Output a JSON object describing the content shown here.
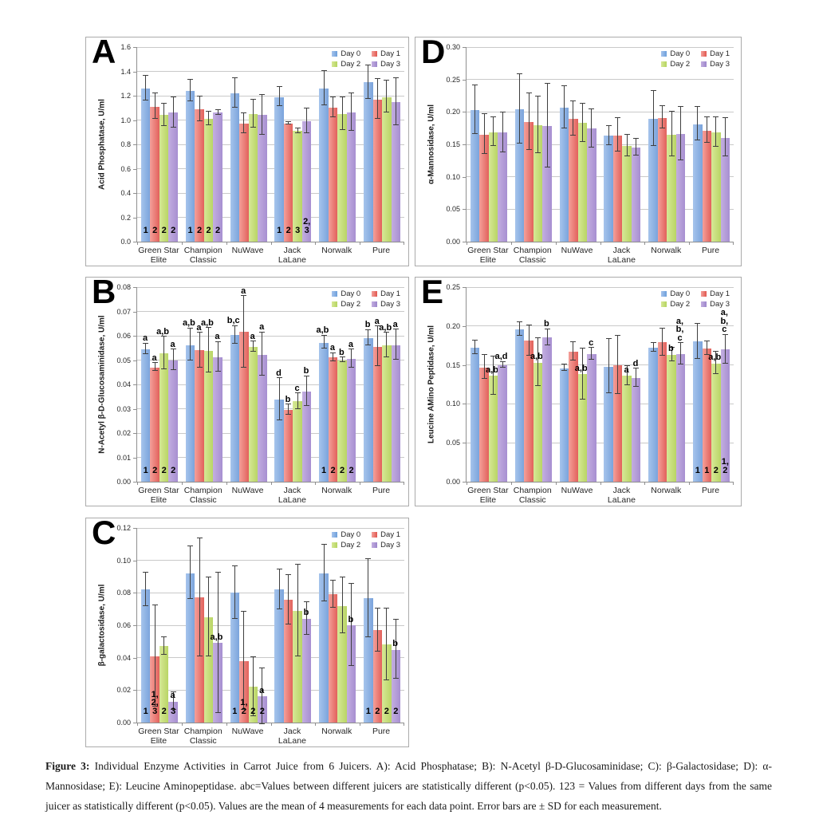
{
  "figure": {
    "caption_label": "Figure 3:",
    "caption_text": " Individual Enzyme Activities in Carrot Juice from 6 Juicers. A): Acid Phosphatase; B): N-Acetyl β-D-Glucosaminidase; C): β-Galactosidase; D): α-Mannosidase; E): Leucine Aminopeptidase. abc=Values between different juicers are statistically different (p<0.05). 123 = Values from different days from the same juicer as statistically different (p<0.05). Values are the mean of 4 measurements for each data point. Error bars are ± SD for each measurement."
  },
  "legend": {
    "labels": [
      "Day 0",
      "Day 1",
      "Day 2",
      "Day 3"
    ]
  },
  "colors": {
    "series_light": [
      "#a6c4ec",
      "#f4a09a",
      "#d6e896",
      "#c3aee0"
    ],
    "series_dark": [
      "#7ba4dc",
      "#e2615b",
      "#b9d565",
      "#a78fd1"
    ],
    "legend_swatch": [
      "#6d9fdb",
      "#e0574f",
      "#b5d45f",
      "#9c85cb"
    ],
    "gridline": "#c9c9c9",
    "axis": "#8f8f8f",
    "error_bar": "#3f3f3f"
  },
  "chart_data": [
    {
      "id": "A",
      "type": "bar",
      "ylabel": "Acid Phosphatase, U/ml",
      "ymax": 1.6,
      "ystep": 0.2,
      "decimals": 1,
      "categories": [
        "Green Star Elite",
        "Champion Classic",
        "NuWave",
        "Jack LaLane",
        "Norwalk",
        "Pure"
      ],
      "series": [
        {
          "name": "Day 0",
          "values": [
            1.26,
            1.24,
            1.22,
            1.19,
            1.26,
            1.31
          ],
          "errors": [
            0.1,
            0.085,
            0.115,
            0.075,
            0.14,
            0.135
          ]
        },
        {
          "name": "Day 1",
          "values": [
            1.11,
            1.09,
            0.97,
            0.97,
            1.1,
            1.17
          ],
          "errors": [
            0.1,
            0.1,
            0.08,
            0.005,
            0.08,
            0.16
          ]
        },
        {
          "name": "Day 2",
          "values": [
            1.04,
            1.01,
            1.05,
            0.91,
            1.05,
            1.19
          ],
          "errors": [
            0.09,
            0.05,
            0.11,
            0.015,
            0.13,
            0.13
          ]
        },
        {
          "name": "Day 3",
          "values": [
            1.06,
            1.06,
            1.04,
            0.99,
            1.06,
            1.15
          ],
          "errors": [
            0.12,
            0.015,
            0.16,
            0.1,
            0.15,
            0.19
          ]
        }
      ],
      "letters": null,
      "numbers": [
        [
          "1",
          "2",
          "2",
          "2"
        ],
        [
          "1",
          "2",
          "2",
          "2"
        ],
        null,
        [
          "1",
          "2",
          "3",
          "2,\n3"
        ],
        null,
        null
      ]
    },
    {
      "id": "B",
      "type": "bar",
      "ylabel": "N-Acetyl β-D-Glucosaminidase, U/ml",
      "ymax": 0.08,
      "ystep": 0.01,
      "decimals": 2,
      "categories": [
        "Green Star Elite",
        "Champion Classic",
        "NuWave",
        "Jack LaLane",
        "Norwalk",
        "Pure"
      ],
      "series": [
        {
          "name": "Day 0",
          "values": [
            0.0545,
            0.0562,
            0.0602,
            0.0337,
            0.0572,
            0.059
          ],
          "errors": [
            0.002,
            0.0065,
            0.0035,
            0.0085,
            0.0025,
            0.003
          ]
        },
        {
          "name": "Day 1",
          "values": [
            0.047,
            0.054,
            0.0615,
            0.0295,
            0.051,
            0.0555
          ],
          "errors": [
            0.0015,
            0.007,
            0.0145,
            0.002,
            0.0015,
            0.008
          ]
        },
        {
          "name": "Day 2",
          "values": [
            0.0528,
            0.0538,
            0.0553,
            0.033,
            0.05,
            0.056
          ],
          "errors": [
            0.0065,
            0.009,
            0.002,
            0.003,
            0.0008,
            0.005
          ]
        },
        {
          "name": "Day 3",
          "values": [
            0.05,
            0.0512,
            0.0523,
            0.037,
            0.0505,
            0.0562
          ],
          "errors": [
            0.004,
            0.006,
            0.0088,
            0.006,
            0.0035,
            0.006
          ]
        }
      ],
      "letters": [
        [
          "a",
          "a",
          "a,b",
          "a"
        ],
        [
          "a,b",
          "a",
          "a,b",
          "a"
        ],
        [
          "b,c",
          "a",
          "a",
          "a"
        ],
        [
          "d",
          "b",
          "c",
          "b"
        ],
        [
          "a,b",
          "a",
          "b",
          "a"
        ],
        [
          "b",
          "a",
          "a,b",
          "a"
        ]
      ],
      "numbers": [
        [
          "1",
          "2",
          "2",
          "2"
        ],
        null,
        null,
        null,
        [
          "1",
          "2",
          "2",
          "2"
        ],
        null
      ]
    },
    {
      "id": "C",
      "type": "bar",
      "ylabel": "β-galactosidase, U/ml",
      "ymax": 0.12,
      "ystep": 0.02,
      "decimals": 2,
      "categories": [
        "Green Star Elite",
        "Champion Classic",
        "NuWave",
        "Jack LaLane",
        "Norwalk",
        "Pure"
      ],
      "series": [
        {
          "name": "Day 0",
          "values": [
            0.082,
            0.092,
            0.08,
            0.082,
            0.092,
            0.0765
          ],
          "errors": [
            0.01,
            0.016,
            0.016,
            0.012,
            0.017,
            0.024
          ]
        },
        {
          "name": "Day 1",
          "values": [
            0.041,
            0.077,
            0.038,
            0.0755,
            0.079,
            0.057
          ],
          "errors": [
            0.031,
            0.036,
            0.03,
            0.015,
            0.008,
            0.013
          ]
        },
        {
          "name": "Day 2",
          "values": [
            0.047,
            0.065,
            0.022,
            0.069,
            0.072,
            0.048
          ],
          "errors": [
            0.005,
            0.024,
            0.018,
            0.028,
            0.017,
            0.022
          ]
        },
        {
          "name": "Day 3",
          "values": [
            0.013,
            0.049,
            0.016,
            0.064,
            0.06,
            0.045
          ],
          "errors": [
            0.005,
            0.043,
            0.017,
            0.01,
            0.025,
            0.018
          ]
        }
      ],
      "letters": [
        [
          null,
          null,
          null,
          "a"
        ],
        [
          null,
          null,
          null,
          "a,b"
        ],
        [
          null,
          null,
          null,
          "a"
        ],
        [
          null,
          null,
          null,
          "b"
        ],
        [
          null,
          null,
          null,
          "b"
        ],
        [
          null,
          null,
          null,
          "b"
        ]
      ],
      "numbers": [
        [
          "1",
          "1,\n2,\n3",
          "2",
          "3"
        ],
        null,
        [
          "1",
          "1,\n2",
          "2",
          "2"
        ],
        null,
        null,
        [
          "1",
          "2",
          "2",
          "2"
        ]
      ]
    },
    {
      "id": "D",
      "type": "bar",
      "ylabel": "α-Mannosidase, U/ml",
      "ymax": 0.3,
      "ystep": 0.05,
      "decimals": 2,
      "categories": [
        "Green Star Elite",
        "Champion Classic",
        "NuWave",
        "Jack LaLane",
        "Norwalk",
        "Pure"
      ],
      "series": [
        {
          "name": "Day 0",
          "values": [
            0.203,
            0.204,
            0.206,
            0.163,
            0.189,
            0.181
          ],
          "errors": [
            0.037,
            0.053,
            0.032,
            0.014,
            0.042,
            0.025
          ]
        },
        {
          "name": "Day 1",
          "values": [
            0.165,
            0.184,
            0.189,
            0.164,
            0.191,
            0.171
          ],
          "errors": [
            0.03,
            0.043,
            0.026,
            0.025,
            0.017,
            0.019
          ]
        },
        {
          "name": "Day 2",
          "values": [
            0.169,
            0.179,
            0.183,
            0.148,
            0.165,
            0.168
          ],
          "errors": [
            0.021,
            0.043,
            0.029,
            0.016,
            0.034,
            0.022
          ]
        },
        {
          "name": "Day 3",
          "values": [
            0.168,
            0.178,
            0.174,
            0.145,
            0.166,
            0.16
          ],
          "errors": [
            0.03,
            0.064,
            0.029,
            0.012,
            0.041,
            0.029
          ]
        }
      ],
      "letters": null,
      "numbers": null
    },
    {
      "id": "E",
      "type": "bar",
      "ylabel": "Leucine AMino Peptidase, U/ml",
      "ymax": 0.25,
      "ystep": 0.05,
      "decimals": 2,
      "categories": [
        "Green Star Elite",
        "Champion Classic",
        "NuWave",
        "Jack LaLane",
        "Norwalk",
        "Pure"
      ],
      "series": [
        {
          "name": "Day 0",
          "values": [
            0.172,
            0.196,
            0.146,
            0.148,
            0.172,
            0.18
          ],
          "errors": [
            0.008,
            0.008,
            0.004,
            0.034,
            0.005,
            0.022
          ]
        },
        {
          "name": "Day 1",
          "values": [
            0.147,
            0.181,
            0.167,
            0.15,
            0.179,
            0.171
          ],
          "errors": [
            0.015,
            0.019,
            0.011,
            0.037,
            0.017,
            0.008
          ]
        },
        {
          "name": "Day 2",
          "values": [
            0.136,
            0.153,
            0.138,
            0.136,
            0.163,
            0.152
          ],
          "errors": [
            0.024,
            0.03,
            0.032,
            0.012,
            0.008,
            0.014
          ]
        },
        {
          "name": "Day 3",
          "values": [
            0.15,
            0.185,
            0.164,
            0.133,
            0.164,
            0.17
          ],
          "errors": [
            0.003,
            0.01,
            0.007,
            0.011,
            0.013,
            0.018
          ]
        }
      ],
      "letters": [
        [
          null,
          null,
          "a,b",
          "a,d"
        ],
        [
          null,
          null,
          "a,b",
          "b"
        ],
        [
          null,
          null,
          "a,b",
          "c"
        ],
        [
          null,
          null,
          "a",
          "d"
        ],
        [
          null,
          null,
          "b",
          "a,\nb,\nc"
        ],
        [
          null,
          null,
          "a,b",
          "a,\nb,\nc"
        ]
      ],
      "numbers": [
        null,
        null,
        null,
        null,
        null,
        [
          "1",
          "1",
          "2",
          "1,\n2"
        ]
      ]
    }
  ]
}
